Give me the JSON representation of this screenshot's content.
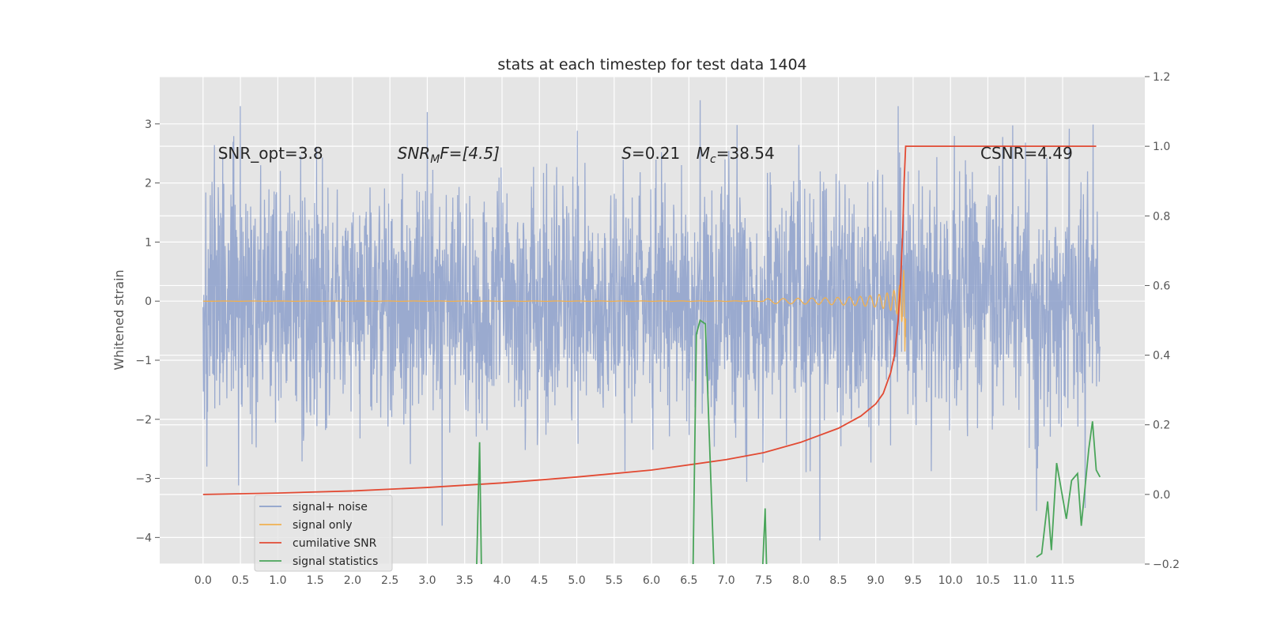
{
  "chart_data": {
    "type": "line",
    "title": "stats at each timestep for test data 1404",
    "ylabel": "Whitened strain",
    "xlim": [
      -0.58,
      12.6
    ],
    "ylim": [
      -4.45,
      3.8
    ],
    "y2lim": [
      -0.2,
      1.2
    ],
    "x_ticks": [
      0.0,
      0.5,
      1.0,
      1.5,
      2.0,
      2.5,
      3.0,
      3.5,
      4.0,
      4.5,
      5.0,
      5.5,
      6.0,
      6.5,
      7.0,
      7.5,
      8.0,
      8.5,
      9.0,
      9.5,
      10.0,
      10.5,
      11.0,
      11.5
    ],
    "x_tick_labels": [
      "0.0",
      "0.5",
      "1.0",
      "1.5",
      "2.0",
      "2.5",
      "3.0",
      "3.5",
      "4.0",
      "4.5",
      "5.0",
      "5.5",
      "6.0",
      "6.5",
      "7.0",
      "7.5",
      "8.0",
      "8.5",
      "9.0",
      "9.5",
      "10.0",
      "10.5",
      "11.0",
      "11.5"
    ],
    "y_ticks": [
      -4,
      -3,
      -2,
      -1,
      0,
      1,
      2,
      3
    ],
    "y_tick_labels": [
      "−4",
      "−3",
      "−2",
      "−1",
      "0",
      "1",
      "2",
      "3"
    ],
    "y2_ticks": [
      -0.2,
      0.0,
      0.2,
      0.4,
      0.6,
      0.8,
      1.0,
      1.2
    ],
    "y2_tick_labels": [
      "−0.2",
      "0.0",
      "0.2",
      "0.4",
      "0.6",
      "0.8",
      "1.0",
      "1.2"
    ],
    "grid": true,
    "legend_position": "lower-left",
    "colors": {
      "plot_bg": "#e5e5e5",
      "grid": "#ffffff",
      "signal_noise": "#8da0cb",
      "signal_only": "#f0b050",
      "cumulative_snr": "#e24a33",
      "signal_statistics": "#4aa55a"
    },
    "annotations": [
      {
        "id": "snr-opt",
        "text": "SNR_opt=3.8",
        "x": 0.2,
        "y": 2.5
      },
      {
        "id": "snr-mf",
        "base": "SNR",
        "sub": "M",
        "rest": "F=[4.5]",
        "x": 2.6,
        "y": 2.5
      },
      {
        "id": "s",
        "italic": "S",
        "rest": "=0.21",
        "x": 5.6,
        "y": 2.5
      },
      {
        "id": "mc",
        "italic": "M",
        "sub": "c",
        "rest": "=38.54",
        "x": 6.6,
        "y": 2.5
      },
      {
        "id": "csnr",
        "text": "CSNR=4.49",
        "x": 10.4,
        "y": 2.5
      }
    ],
    "series": [
      {
        "name": "signal+ noise",
        "axis": "left",
        "kind": "noise",
        "x_range": [
          0.0,
          12.0
        ],
        "amplitude": 1.0,
        "extremes": [
          [
            0.5,
            3.3
          ],
          [
            3.0,
            3.2
          ],
          [
            6.65,
            3.4
          ],
          [
            9.3,
            3.3
          ],
          [
            0.05,
            -2.8
          ],
          [
            3.2,
            -3.8
          ],
          [
            8.25,
            -4.05
          ],
          [
            11.15,
            -3.55
          ],
          [
            11.8,
            -3.5
          ]
        ]
      },
      {
        "name": "signal only",
        "axis": "left",
        "kind": "chirp",
        "x_range": [
          0.0,
          9.4
        ],
        "peak_time": 9.4,
        "peak_amplitude": 0.9
      },
      {
        "name": "cumilative SNR",
        "axis": "right",
        "points": [
          [
            0.0,
            0.0
          ],
          [
            1.0,
            0.004
          ],
          [
            2.0,
            0.01
          ],
          [
            3.0,
            0.02
          ],
          [
            4.0,
            0.033
          ],
          [
            5.0,
            0.05
          ],
          [
            6.0,
            0.07
          ],
          [
            7.0,
            0.1
          ],
          [
            7.5,
            0.12
          ],
          [
            8.0,
            0.15
          ],
          [
            8.5,
            0.19
          ],
          [
            8.8,
            0.225
          ],
          [
            9.0,
            0.26
          ],
          [
            9.1,
            0.29
          ],
          [
            9.2,
            0.35
          ],
          [
            9.25,
            0.4
          ],
          [
            9.3,
            0.5
          ],
          [
            9.33,
            0.6
          ],
          [
            9.36,
            0.75
          ],
          [
            9.38,
            0.9
          ],
          [
            9.4,
            1.0
          ],
          [
            11.95,
            1.0
          ]
        ]
      },
      {
        "name": "signal statistics",
        "axis": "right",
        "points": [
          [
            3.65,
            -0.3
          ],
          [
            3.7,
            0.15
          ],
          [
            3.73,
            -0.3
          ],
          null,
          [
            6.55,
            -0.3
          ],
          [
            6.6,
            0.46
          ],
          [
            6.65,
            0.5
          ],
          [
            6.72,
            0.49
          ],
          [
            6.85,
            -0.3
          ],
          null,
          [
            7.47,
            -0.3
          ],
          [
            7.52,
            -0.04
          ],
          [
            7.55,
            -0.3
          ],
          null,
          [
            11.15,
            -0.18
          ],
          [
            11.22,
            -0.17
          ],
          [
            11.3,
            -0.02
          ],
          [
            11.35,
            -0.16
          ],
          [
            11.42,
            0.09
          ],
          [
            11.55,
            -0.07
          ],
          [
            11.62,
            0.04
          ],
          [
            11.7,
            0.06
          ],
          [
            11.75,
            -0.09
          ],
          [
            11.85,
            0.13
          ],
          [
            11.9,
            0.21
          ],
          [
            11.95,
            0.07
          ],
          [
            12.0,
            0.05
          ]
        ]
      }
    ]
  }
}
